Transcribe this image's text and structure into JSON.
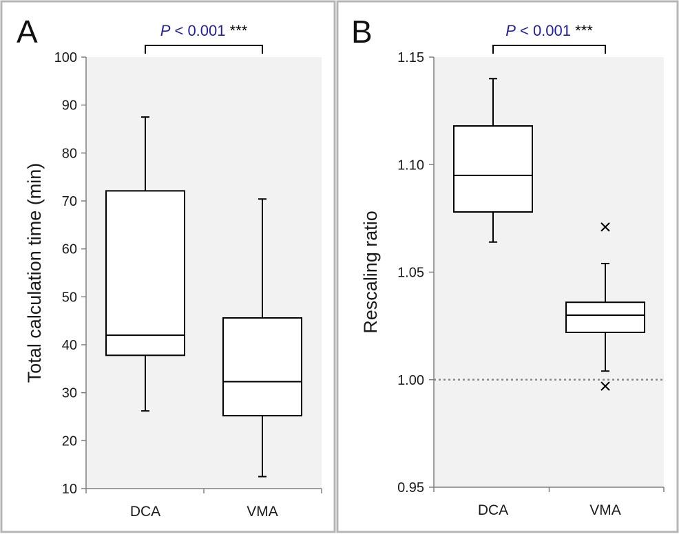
{
  "chart_data": [
    {
      "type": "box",
      "panel": "A",
      "ylabel": "Total calculation time (min)",
      "ylim": [
        10,
        100
      ],
      "yticks": [
        {
          "value": 10,
          "label": "10"
        },
        {
          "value": 20,
          "label": "20"
        },
        {
          "value": 30,
          "label": "30"
        },
        {
          "value": 40,
          "label": "40"
        },
        {
          "value": 50,
          "label": "50"
        },
        {
          "value": 60,
          "label": "60"
        },
        {
          "value": 70,
          "label": "70"
        },
        {
          "value": 80,
          "label": "80"
        },
        {
          "value": 90,
          "label": "90"
        },
        {
          "value": 100,
          "label": "100"
        }
      ],
      "categories": [
        "DCA",
        "VMA"
      ],
      "boxes": [
        {
          "category": "DCA",
          "whisker_low": 26.2,
          "q1": 37.8,
          "median": 42.0,
          "q3": 72.1,
          "whisker_high": 87.5,
          "outliers": []
        },
        {
          "category": "VMA",
          "whisker_low": 12.5,
          "q1": 25.2,
          "median": 32.3,
          "q3": 45.6,
          "whisker_high": 70.4,
          "outliers": []
        }
      ],
      "significance": {
        "p_italic": "P",
        "p_text": " < 0.001",
        "stars": " ***"
      },
      "reference_line": null,
      "grid": false
    },
    {
      "type": "box",
      "panel": "B",
      "ylabel": "Rescaling ratio",
      "ylim": [
        0.95,
        1.15
      ],
      "yticks": [
        {
          "value": 0.95,
          "label": "0.95"
        },
        {
          "value": 1.0,
          "label": "1.00"
        },
        {
          "value": 1.05,
          "label": "1.05"
        },
        {
          "value": 1.1,
          "label": "1.10"
        },
        {
          "value": 1.15,
          "label": "1.15"
        }
      ],
      "categories": [
        "DCA",
        "VMA"
      ],
      "boxes": [
        {
          "category": "DCA",
          "whisker_low": 1.064,
          "q1": 1.078,
          "median": 1.095,
          "q3": 1.118,
          "whisker_high": 1.14,
          "outliers": []
        },
        {
          "category": "VMA",
          "whisker_low": 1.004,
          "q1": 1.022,
          "median": 1.03,
          "q3": 1.036,
          "whisker_high": 1.054,
          "outliers": [
            1.071,
            0.997
          ]
        }
      ],
      "significance": {
        "p_italic": "P",
        "p_text": " < 0.001",
        "stars": " ***"
      },
      "reference_line": 1.0,
      "grid": false
    }
  ],
  "colors": {
    "plot_background": "#f2f2f2",
    "panel_border": "#b5b5b5",
    "axis": "#7f7f7f",
    "p_value_text": "#1f1f9e",
    "stars": "#000000",
    "reference_line": "#888888"
  }
}
